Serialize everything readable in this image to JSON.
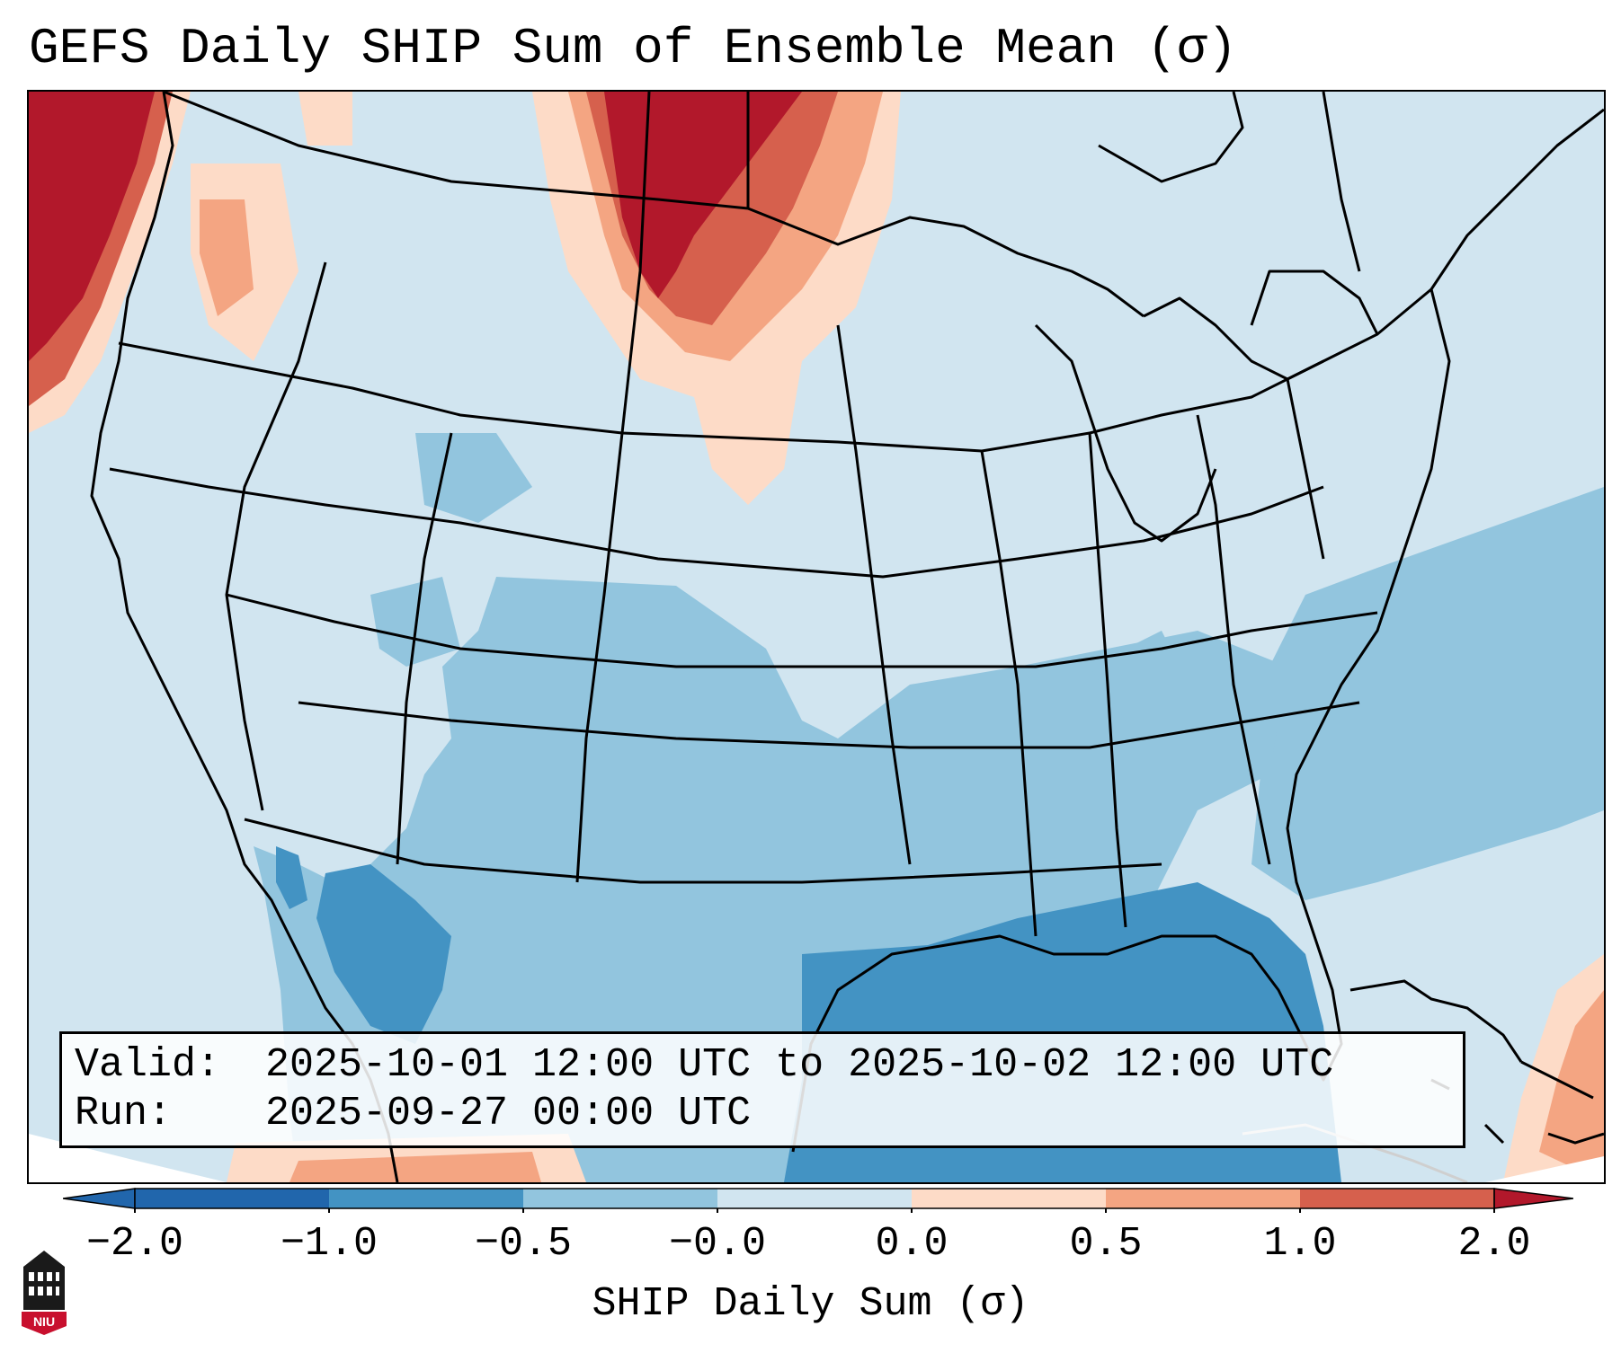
{
  "title": "GEFS Daily SHIP Sum of Ensemble Mean (σ)",
  "info": {
    "valid_label": "Valid:",
    "valid_value": "2025-10-01 12:00 UTC to 2025-10-02 12:00 UTC",
    "run_label": "Run:",
    "run_value": "2025-09-27 00:00 UTC"
  },
  "colorbar": {
    "label": "SHIP Daily Sum (σ)",
    "tick_labels": [
      "−2.0",
      "−1.0",
      "−0.5",
      "−0.0",
      "0.0",
      "0.5",
      "1.0",
      "2.0"
    ],
    "colors": [
      "#2166ac",
      "#4393c3",
      "#92c5de",
      "#d1e5f0",
      "#fddbc7",
      "#f4a582",
      "#d6604d",
      "#b2182b"
    ],
    "extend": "both"
  },
  "logo": {
    "text": "NIU",
    "icon": "university-logo-icon"
  }
}
